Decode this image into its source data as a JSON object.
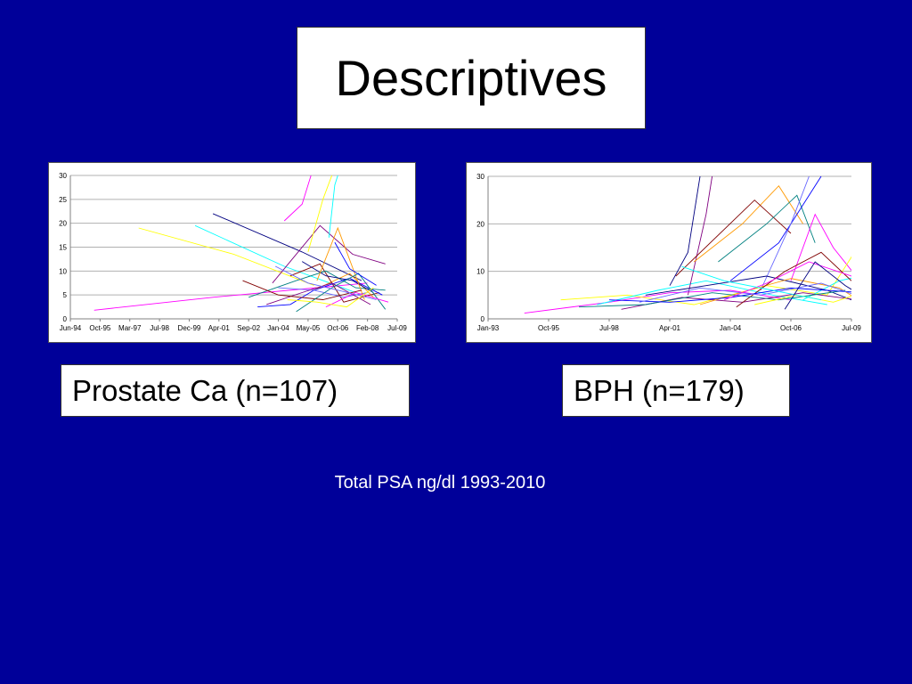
{
  "slide": {
    "title": "Descriptives",
    "caption_left": "Prostate Ca (n=107)",
    "caption_right": "BPH (n=179)",
    "footnote": "Total PSA ng/dl 1993-2010",
    "background_color": "#000099"
  },
  "chart_data": [
    {
      "type": "line",
      "cohort": "Prostate Ca",
      "x_ticks": [
        "Jun-94",
        "Oct-95",
        "Mar-97",
        "Jul-98",
        "Dec-99",
        "Apr-01",
        "Sep-02",
        "Jan-04",
        "May-05",
        "Oct-06",
        "Feb-08",
        "Jul-09"
      ],
      "y_ticks": [
        "0",
        "5",
        "10",
        "15",
        "20",
        "25",
        "30"
      ],
      "ylim": [
        0,
        30
      ],
      "grid": "horizontal",
      "series_colors": [
        "#ff00ff",
        "#ffff00",
        "#00ffff",
        "#000080",
        "#800080",
        "#ff9900",
        "#800000",
        "#008080",
        "#0000ff",
        "#6666ff"
      ],
      "series": [
        {
          "points": [
            [
              0.8,
              1.8
            ],
            [
              4.8,
              4.5
            ],
            [
              10.0,
              7.5
            ]
          ]
        },
        {
          "points": [
            [
              2.3,
              19.0
            ],
            [
              5.5,
              13.5
            ],
            [
              8.2,
              7.0
            ]
          ]
        },
        {
          "points": [
            [
              4.2,
              19.5
            ],
            [
              7.2,
              11.0
            ],
            [
              9.6,
              5.5
            ]
          ]
        },
        {
          "points": [
            [
              4.8,
              22.0
            ],
            [
              7.8,
              14.0
            ],
            [
              9.8,
              8.0
            ]
          ]
        },
        {
          "points": [
            [
              6.8,
              7.5
            ],
            [
              8.4,
              19.5
            ],
            [
              9.5,
              13.5
            ],
            [
              10.6,
              11.5
            ]
          ]
        },
        {
          "points": [
            [
              8.2,
              6.0
            ],
            [
              9.4,
              9.5
            ],
            [
              10.2,
              4.5
            ]
          ]
        },
        {
          "points": [
            [
              7.4,
              9.0
            ],
            [
              8.4,
              11.5
            ],
            [
              9.2,
              3.5
            ],
            [
              10.4,
              5.5
            ]
          ]
        },
        {
          "points": [
            [
              6.0,
              4.5
            ],
            [
              7.6,
              8.0
            ],
            [
              8.6,
              10.0
            ],
            [
              9.6,
              6.5
            ],
            [
              10.6,
              6.0
            ]
          ]
        },
        {
          "points": [
            [
              6.3,
              2.5
            ],
            [
              7.4,
              3.0
            ],
            [
              8.2,
              6.0
            ],
            [
              9.4,
              8.5
            ],
            [
              10.5,
              5.0
            ]
          ]
        },
        {
          "points": [
            [
              7.0,
              6.5
            ],
            [
              8.2,
              6.0
            ],
            [
              9.2,
              4.5
            ],
            [
              10.0,
              5.5
            ]
          ]
        },
        {
          "points": [
            [
              7.2,
              20.5
            ],
            [
              7.8,
              24.0
            ],
            [
              8.1,
              30.0
            ]
          ]
        },
        {
          "points": [
            [
              8.0,
              14.0
            ],
            [
              8.5,
              25.0
            ],
            [
              8.8,
              30.0
            ]
          ]
        },
        {
          "points": [
            [
              8.7,
              17.0
            ],
            [
              8.9,
              28.0
            ],
            [
              9.0,
              30.0
            ]
          ]
        },
        {
          "points": [
            [
              7.8,
              12.0
            ],
            [
              8.6,
              9.0
            ],
            [
              9.5,
              8.0
            ],
            [
              10.2,
              5.5
            ]
          ]
        },
        {
          "points": [
            [
              6.6,
              3.0
            ],
            [
              7.8,
              5.5
            ],
            [
              8.8,
              7.5
            ],
            [
              10.1,
              3.0
            ]
          ]
        },
        {
          "points": [
            [
              8.3,
              8.0
            ],
            [
              9.0,
              19.0
            ],
            [
              9.9,
              4.0
            ]
          ]
        },
        {
          "points": [
            [
              5.8,
              8.0
            ],
            [
              7.0,
              5.0
            ],
            [
              8.5,
              4.0
            ],
            [
              9.8,
              6.0
            ]
          ]
        },
        {
          "points": [
            [
              7.6,
              1.5
            ],
            [
              8.8,
              6.5
            ],
            [
              9.7,
              9.5
            ],
            [
              10.6,
              2.0
            ]
          ]
        },
        {
          "points": [
            [
              8.9,
              16.0
            ],
            [
              9.4,
              10.5
            ],
            [
              10.3,
              7.0
            ]
          ]
        },
        {
          "points": [
            [
              6.9,
              11.0
            ],
            [
              8.0,
              7.5
            ],
            [
              9.0,
              6.0
            ],
            [
              10.3,
              4.0
            ]
          ]
        },
        {
          "points": [
            [
              8.6,
              2.5
            ],
            [
              9.6,
              5.5
            ],
            [
              10.7,
              3.5
            ]
          ]
        },
        {
          "points": [
            [
              7.3,
              4.0
            ],
            [
              8.3,
              3.5
            ],
            [
              9.3,
              2.5
            ],
            [
              10.2,
              6.5
            ]
          ]
        }
      ]
    },
    {
      "type": "line",
      "cohort": "BPH",
      "x_ticks": [
        "Jan-93",
        "Oct-95",
        "Jul-98",
        "Apr-01",
        "Jan-04",
        "Oct-06",
        "Jul-09"
      ],
      "y_ticks": [
        "0",
        "10",
        "20",
        "30"
      ],
      "ylim": [
        0,
        30
      ],
      "grid": "horizontal",
      "series_colors": [
        "#ff00ff",
        "#ffff00",
        "#00ffff",
        "#000080",
        "#800080",
        "#ff9900",
        "#800000",
        "#008080",
        "#0000ff",
        "#6666ff"
      ],
      "series": [
        {
          "points": [
            [
              0.6,
              1.2
            ],
            [
              2.0,
              3.5
            ],
            [
              3.0,
              5.5
            ],
            [
              4.0,
              6.0
            ],
            [
              5.0,
              4.0
            ]
          ]
        },
        {
          "points": [
            [
              1.2,
              4.0
            ],
            [
              2.3,
              5.0
            ],
            [
              3.4,
              3.0
            ],
            [
              4.6,
              7.0
            ],
            [
              5.6,
              5.0
            ]
          ]
        },
        {
          "points": [
            [
              1.8,
              3.0
            ],
            [
              2.8,
              6.0
            ],
            [
              3.6,
              8.0
            ],
            [
              4.7,
              5.0
            ],
            [
              5.6,
              3.0
            ]
          ]
        },
        {
          "points": [
            [
              3.0,
              7.0
            ],
            [
              3.3,
              14.0
            ],
            [
              3.5,
              30.0
            ]
          ]
        },
        {
          "points": [
            [
              3.3,
              5.0
            ],
            [
              3.6,
              22.0
            ],
            [
              3.7,
              30.0
            ]
          ]
        },
        {
          "points": [
            [
              3.4,
              12.0
            ],
            [
              4.2,
              20.0
            ],
            [
              4.8,
              28.0
            ],
            [
              5.2,
              20.0
            ]
          ]
        },
        {
          "points": [
            [
              3.1,
              9.0
            ],
            [
              4.4,
              25.0
            ],
            [
              5.0,
              18.0
            ]
          ]
        },
        {
          "points": [
            [
              3.8,
              12.0
            ],
            [
              4.6,
              20.0
            ],
            [
              5.1,
              26.0
            ],
            [
              5.4,
              16.0
            ]
          ]
        },
        {
          "points": [
            [
              4.0,
              8.0
            ],
            [
              4.8,
              16.0
            ],
            [
              5.5,
              30.0
            ]
          ]
        },
        {
          "points": [
            [
              4.5,
              6.0
            ],
            [
              5.0,
              20.0
            ],
            [
              5.3,
              30.0
            ]
          ]
        },
        {
          "points": [
            [
              5.0,
              8.0
            ],
            [
              5.4,
              22.0
            ],
            [
              5.7,
              15.0
            ],
            [
              6.2,
              7.0
            ]
          ]
        },
        {
          "points": [
            [
              5.6,
              5.0
            ],
            [
              6.0,
              13.0
            ],
            [
              6.4,
              30.0
            ]
          ]
        },
        {
          "points": [
            [
              5.2,
              4.0
            ],
            [
              5.8,
              8.0
            ],
            [
              6.5,
              10.0
            ]
          ]
        },
        {
          "points": [
            [
              2.6,
              5.0
            ],
            [
              3.6,
              7.0
            ],
            [
              4.6,
              9.0
            ],
            [
              5.6,
              6.0
            ],
            [
              6.2,
              3.0
            ]
          ]
        },
        {
          "points": [
            [
              2.2,
              2.0
            ],
            [
              3.2,
              4.5
            ],
            [
              4.2,
              3.5
            ],
            [
              5.2,
              5.5
            ],
            [
              6.1,
              4.0
            ]
          ]
        },
        {
          "points": [
            [
              3.5,
              3.0
            ],
            [
              4.3,
              6.0
            ],
            [
              5.0,
              8.5
            ],
            [
              5.8,
              6.5
            ],
            [
              6.3,
              2.5
            ]
          ]
        },
        {
          "points": [
            [
              4.1,
              2.5
            ],
            [
              4.9,
              10.0
            ],
            [
              5.5,
              14.0
            ],
            [
              6.0,
              8.0
            ]
          ]
        },
        {
          "points": [
            [
              1.5,
              2.5
            ],
            [
              2.6,
              3.0
            ],
            [
              3.7,
              5.5
            ],
            [
              4.8,
              4.0
            ],
            [
              5.9,
              6.0
            ]
          ]
        },
        {
          "points": [
            [
              2.0,
              4.0
            ],
            [
              3.0,
              3.5
            ],
            [
              4.0,
              4.5
            ],
            [
              5.0,
              6.5
            ],
            [
              6.2,
              5.5
            ]
          ]
        },
        {
          "points": [
            [
              2.5,
              3.5
            ],
            [
              3.5,
              6.5
            ],
            [
              4.5,
              5.0
            ],
            [
              5.5,
              7.5
            ],
            [
              6.3,
              4.0
            ]
          ]
        },
        {
          "points": [
            [
              3.9,
              4.0
            ],
            [
              4.6,
              7.5
            ],
            [
              5.3,
              12.0
            ],
            [
              6.0,
              9.0
            ],
            [
              6.4,
              5.0
            ]
          ]
        },
        {
          "points": [
            [
              4.4,
              3.0
            ],
            [
              5.1,
              5.0
            ],
            [
              5.7,
              3.5
            ],
            [
              6.3,
              6.0
            ]
          ]
        },
        {
          "points": [
            [
              3.2,
              11.0
            ],
            [
              3.9,
              8.0
            ],
            [
              4.7,
              6.0
            ],
            [
              5.5,
              4.0
            ]
          ]
        },
        {
          "points": [
            [
              4.9,
              2.0
            ],
            [
              5.4,
              12.0
            ],
            [
              5.9,
              7.0
            ],
            [
              6.4,
              3.0
            ]
          ]
        }
      ]
    }
  ]
}
